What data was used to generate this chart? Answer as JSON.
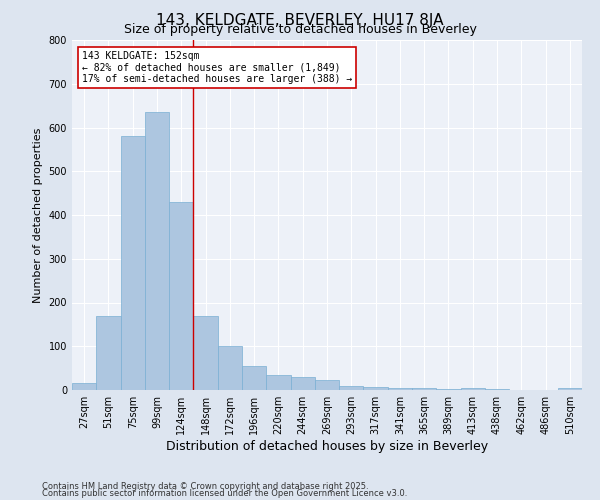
{
  "title": "143, KELDGATE, BEVERLEY, HU17 8JA",
  "subtitle": "Size of property relative to detached houses in Beverley",
  "xlabel": "Distribution of detached houses by size in Beverley",
  "ylabel": "Number of detached properties",
  "bins": [
    "27sqm",
    "51sqm",
    "75sqm",
    "99sqm",
    "124sqm",
    "148sqm",
    "172sqm",
    "196sqm",
    "220sqm",
    "244sqm",
    "269sqm",
    "293sqm",
    "317sqm",
    "341sqm",
    "365sqm",
    "389sqm",
    "413sqm",
    "438sqm",
    "462sqm",
    "486sqm",
    "510sqm"
  ],
  "values": [
    15,
    170,
    580,
    635,
    430,
    170,
    100,
    55,
    35,
    30,
    22,
    10,
    7,
    5,
    4,
    3,
    5,
    2,
    1,
    0,
    5
  ],
  "bar_color": "#adc6e0",
  "bar_edge_color": "#7aafd4",
  "property_line_index": 5,
  "property_line_color": "#cc0000",
  "annotation_text": "143 KELDGATE: 152sqm\n← 82% of detached houses are smaller (1,849)\n17% of semi-detached houses are larger (388) →",
  "annotation_box_color": "#ffffff",
  "annotation_box_edge": "#cc0000",
  "footnote1": "Contains HM Land Registry data © Crown copyright and database right 2025.",
  "footnote2": "Contains public sector information licensed under the Open Government Licence v3.0.",
  "bg_color": "#dde5f0",
  "plot_bg_color": "#edf1f8",
  "ylim": [
    0,
    800
  ],
  "yticks": [
    0,
    100,
    200,
    300,
    400,
    500,
    600,
    700,
    800
  ],
  "grid_color": "#ffffff",
  "title_fontsize": 11,
  "subtitle_fontsize": 9,
  "xlabel_fontsize": 9,
  "ylabel_fontsize": 8,
  "tick_fontsize": 7,
  "annot_fontsize": 7
}
